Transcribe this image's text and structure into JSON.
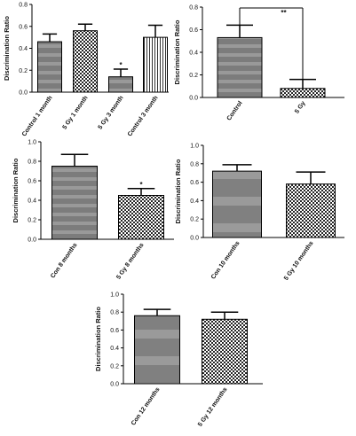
{
  "chart_data": [
    {
      "type": "bar",
      "ylabel": "Discrimination Ratio",
      "ylim": [
        0,
        0.8
      ],
      "yticks": [
        "0.0",
        "0.2",
        "0.4",
        "0.6",
        "0.8"
      ],
      "categories": [
        "Control 1 month",
        "5 Gy 1 month",
        "5 Gy 3 month",
        "Control 3 month"
      ],
      "values": [
        0.46,
        0.56,
        0.14,
        0.5
      ],
      "errors": [
        0.07,
        0.06,
        0.07,
        0.11
      ],
      "patterns": [
        "stripes",
        "checker",
        "stripes",
        "vlines"
      ],
      "annotations": [
        {
          "category_index": 2,
          "text": "*"
        }
      ]
    },
    {
      "type": "bar",
      "ylabel": "Discrimination Ratio",
      "ylim": [
        0,
        0.8
      ],
      "yticks": [
        "0.0",
        "0.2",
        "0.4",
        "0.6",
        "0.8"
      ],
      "categories": [
        "Control",
        "5 Gy"
      ],
      "values": [
        0.53,
        0.08
      ],
      "errors": [
        0.11,
        0.08
      ],
      "patterns": [
        "stripes",
        "checker"
      ],
      "bracket": {
        "from": 0,
        "to": 1,
        "text": "**"
      }
    },
    {
      "type": "bar",
      "ylabel": "Discrimination Ratio",
      "ylim": [
        0,
        1.0
      ],
      "yticks": [
        "0.0",
        "0.2",
        "0.4",
        "0.6",
        "0.8",
        "1.0"
      ],
      "categories": [
        "Con 8 months",
        "5 Gy 8 months"
      ],
      "values": [
        0.75,
        0.45
      ],
      "errors": [
        0.12,
        0.07
      ],
      "patterns": [
        "stripes",
        "checker"
      ],
      "annotations": [
        {
          "category_index": 1,
          "text": "*"
        }
      ]
    },
    {
      "type": "bar",
      "ylabel": "Discrimination Ratio",
      "ylim": [
        0,
        1.0
      ],
      "yticks": [
        "0.0",
        "0.2",
        "0.4",
        "0.6",
        "0.8",
        "1.0"
      ],
      "categories": [
        "Con 10 months",
        "5 Gy 10 months"
      ],
      "values": [
        0.72,
        0.58
      ],
      "errors": [
        0.07,
        0.13
      ],
      "patterns": [
        "solid",
        "checker"
      ]
    },
    {
      "type": "bar",
      "ylabel": "Discrimination Ratio",
      "ylim": [
        0,
        1.0
      ],
      "yticks": [
        "0.0",
        "0.2",
        "0.4",
        "0.6",
        "0.8",
        "1.0"
      ],
      "categories": [
        "Con 12 months",
        "5 Gy 12 months"
      ],
      "values": [
        0.76,
        0.72
      ],
      "errors": [
        0.07,
        0.08
      ],
      "patterns": [
        "solid",
        "checker"
      ]
    }
  ]
}
